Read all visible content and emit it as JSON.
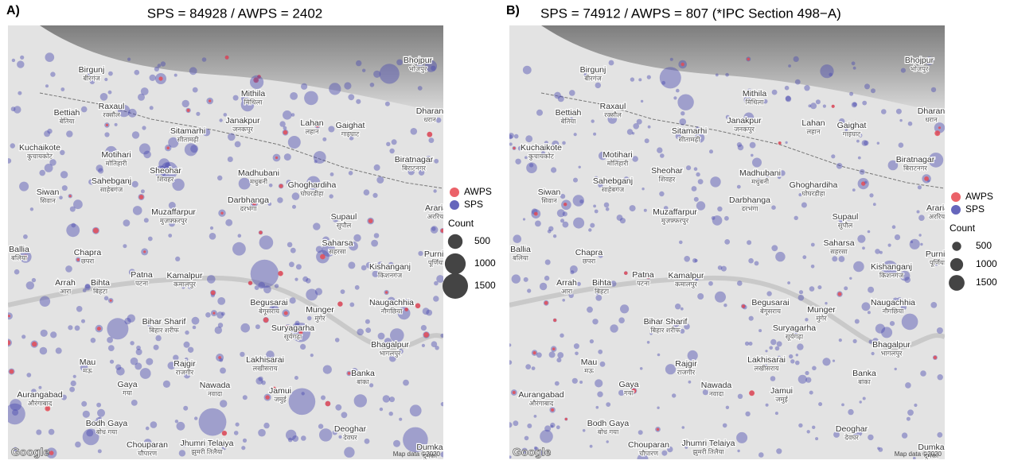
{
  "panels": [
    {
      "label": "A)",
      "title": "SPS = 84928 / AWPS = 2402"
    },
    {
      "label": "B)",
      "title": "SPS = 74912 / AWPS = 807 (*IPC Section 498−A)"
    }
  ],
  "places": [
    {
      "name": "Bhojpur",
      "local": "भोजपुर"
    },
    {
      "name": "Birgunj",
      "local": "बीरगंज"
    },
    {
      "name": "Mithila",
      "local": "मिथिला"
    },
    {
      "name": "Raxaul",
      "local": "रक्सौल"
    },
    {
      "name": "Bettiah",
      "local": "बेतिया"
    },
    {
      "name": "Dharan",
      "local": "धरान"
    },
    {
      "name": "Janakpur",
      "local": "जनकपुर"
    },
    {
      "name": "Lahan",
      "local": "लहान"
    },
    {
      "name": "Gaighat",
      "local": "गाइघाट"
    },
    {
      "name": "Sitamarhi",
      "local": "सीतामढ़ी"
    },
    {
      "name": "Kuchaikote",
      "local": "कुचायकोट"
    },
    {
      "name": "Motihari",
      "local": "मोतिहारी"
    },
    {
      "name": "Biratnagar",
      "local": "बिराटनगर"
    },
    {
      "name": "Sheohar",
      "local": "शिवहर"
    },
    {
      "name": "Madhubani",
      "local": "मधुबनी"
    },
    {
      "name": "Sahebganj",
      "local": "साहेबगंज"
    },
    {
      "name": "Ghoghardiha",
      "local": "घोघरडीहा"
    },
    {
      "name": "Siwan",
      "local": "सिवान"
    },
    {
      "name": "Darbhanga",
      "local": "दरभंगा"
    },
    {
      "name": "Araria",
      "local": "अररिया"
    },
    {
      "name": "Muzaffarpur",
      "local": "मुज़फ़्फ़रपुर"
    },
    {
      "name": "Supaul",
      "local": "सुपौल"
    },
    {
      "name": "Ballia",
      "local": "बलिया"
    },
    {
      "name": "Chapra",
      "local": "छपरा"
    },
    {
      "name": "Saharsa",
      "local": "सहरसा"
    },
    {
      "name": "Purnia",
      "local": "पूर्णिया"
    },
    {
      "name": "Kishanganj",
      "local": "किशनगंज"
    },
    {
      "name": "Patna",
      "local": "पटना"
    },
    {
      "name": "Kamalpur",
      "local": "कमालपुर"
    },
    {
      "name": "Arrah",
      "local": "आरा"
    },
    {
      "name": "Bihta",
      "local": "बिहटा"
    },
    {
      "name": "Begusarai",
      "local": "बेगूसराय"
    },
    {
      "name": "Naugachhia",
      "local": "नौगछिया"
    },
    {
      "name": "Munger",
      "local": "मुंगेर"
    },
    {
      "name": "Bihar Sharif",
      "local": "बिहार शरीफ"
    },
    {
      "name": "Suryagarha",
      "local": "सूर्यगढ़ा"
    },
    {
      "name": "Bhagalpur",
      "local": "भागलपुर"
    },
    {
      "name": "Lakhisarai",
      "local": "लखीसराय"
    },
    {
      "name": "Mau",
      "local": "मऊ"
    },
    {
      "name": "Rajgir",
      "local": "राजगीर"
    },
    {
      "name": "Gaya",
      "local": "गया"
    },
    {
      "name": "Nawada",
      "local": "नवादा"
    },
    {
      "name": "Banka",
      "local": "बांका"
    },
    {
      "name": "Jamui",
      "local": "जमुई"
    },
    {
      "name": "Aurangabad",
      "local": "औरंगाबाद"
    },
    {
      "name": "Bodh Gaya",
      "local": "बोध गया"
    },
    {
      "name": "Deoghar",
      "local": "देवघर"
    },
    {
      "name": "Chouparan",
      "local": "चौपारण"
    },
    {
      "name": "Jhumri Telaiya",
      "local": "झुमरी तिलैया"
    },
    {
      "name": "Dumka",
      "local": "दुमका"
    }
  ],
  "legend": {
    "series": [
      {
        "name": "AWPS",
        "color": "#e8474f"
      },
      {
        "name": "SPS",
        "color": "#4b4bb0"
      }
    ],
    "size_title": "Count",
    "sizes": [
      500,
      1000,
      1500
    ]
  },
  "attribution": "Map data ©2020",
  "logo": "Google"
}
